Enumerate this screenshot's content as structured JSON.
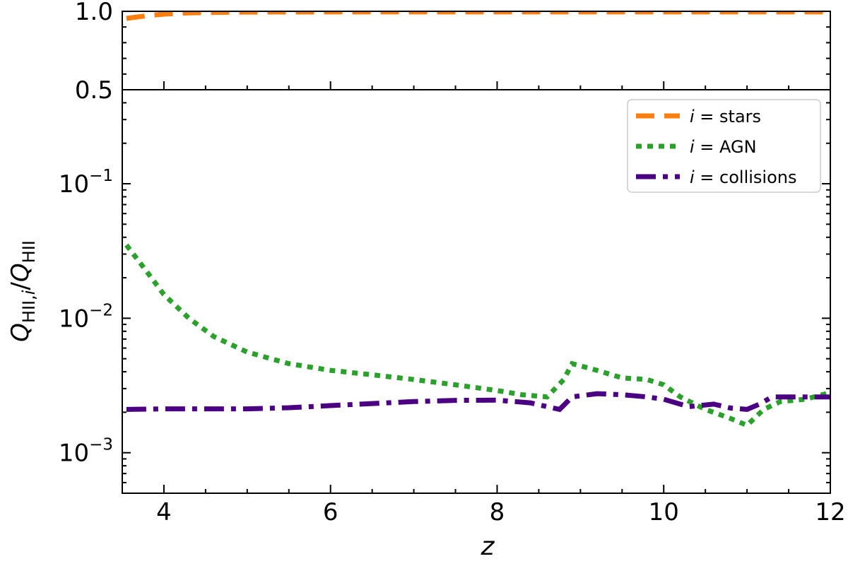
{
  "chart_data": [
    {
      "type": "line",
      "panel": "top",
      "xlim": [
        3.5,
        12
      ],
      "ylim": [
        0.5,
        1.0
      ],
      "yscale": "linear",
      "yticks": [
        {
          "value": 0.5,
          "label": "0.5"
        },
        {
          "value": 1.0,
          "label": "1.0"
        }
      ],
      "series": [
        {
          "key": "stars",
          "color": "#ff7f0e",
          "dash": "dashed",
          "x": [
            3.55,
            3.8,
            4.0,
            4.3,
            4.6,
            5.0,
            6.0,
            7.0,
            8.0,
            9.0,
            10.0,
            11.0,
            12.0
          ],
          "y": [
            0.955,
            0.972,
            0.982,
            0.99,
            0.993,
            0.995,
            0.996,
            0.996,
            0.996,
            0.996,
            0.996,
            0.996,
            0.996
          ]
        }
      ]
    },
    {
      "type": "line",
      "panel": "bottom",
      "xlim": [
        3.5,
        12
      ],
      "ylim": [
        0.0005,
        0.5
      ],
      "yscale": "log",
      "xlabel": "z",
      "ylabel": "Q_{HII,i}/Q_{HII}",
      "xticks": [
        {
          "value": 4,
          "label": "4"
        },
        {
          "value": 6,
          "label": "6"
        },
        {
          "value": 8,
          "label": "8"
        },
        {
          "value": 10,
          "label": "10"
        },
        {
          "value": 12,
          "label": "12"
        }
      ],
      "yticks": [
        {
          "value": 0.001,
          "base": "10",
          "exp": "−3"
        },
        {
          "value": 0.01,
          "base": "10",
          "exp": "−2"
        },
        {
          "value": 0.1,
          "base": "10",
          "exp": "−1"
        }
      ],
      "legend_position": "top-right",
      "legend": [
        {
          "series_key": "stars",
          "prefix": "i",
          "label": " = stars",
          "color": "#ff7f0e",
          "dash": "dashed"
        },
        {
          "series_key": "agn",
          "prefix": "i",
          "label": " = AGN",
          "color": "#2ca02c",
          "dash": "dotted"
        },
        {
          "series_key": "collisions",
          "prefix": "i",
          "label": " = collisions",
          "color": "#4b0082",
          "dash": "dashdot"
        }
      ],
      "series": [
        {
          "key": "agn",
          "color": "#2ca02c",
          "dash": "dotted",
          "x": [
            3.55,
            3.8,
            4.0,
            4.3,
            4.6,
            5.0,
            5.5,
            6.0,
            6.5,
            7.0,
            7.5,
            8.0,
            8.3,
            8.6,
            8.8,
            8.9,
            9.2,
            9.5,
            9.8,
            10.0,
            10.2,
            10.5,
            10.8,
            11.0,
            11.2,
            11.4,
            11.7,
            12.0
          ],
          "y": [
            0.035,
            0.022,
            0.015,
            0.01,
            0.0073,
            0.0056,
            0.0046,
            0.0041,
            0.0038,
            0.0035,
            0.0032,
            0.0029,
            0.0027,
            0.0026,
            0.0035,
            0.0046,
            0.0041,
            0.0036,
            0.0035,
            0.0032,
            0.0026,
            0.0021,
            0.0018,
            0.0016,
            0.0021,
            0.0024,
            0.0025,
            0.0028
          ]
        },
        {
          "key": "collisions",
          "color": "#4b0082",
          "dash": "dashdot",
          "x": [
            3.55,
            4.0,
            5.0,
            5.5,
            6.0,
            6.5,
            7.0,
            7.5,
            8.0,
            8.4,
            8.6,
            8.75,
            8.9,
            9.2,
            9.5,
            9.8,
            10.0,
            10.3,
            10.6,
            10.8,
            11.0,
            11.15,
            11.3,
            11.6,
            12.0
          ],
          "y": [
            0.0021,
            0.00212,
            0.00212,
            0.00216,
            0.00224,
            0.00232,
            0.0024,
            0.00245,
            0.00246,
            0.00235,
            0.0022,
            0.0021,
            0.0026,
            0.00275,
            0.0027,
            0.0026,
            0.0025,
            0.0022,
            0.0023,
            0.00215,
            0.0021,
            0.0023,
            0.0026,
            0.0026,
            0.0026
          ]
        }
      ]
    }
  ]
}
